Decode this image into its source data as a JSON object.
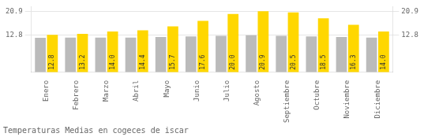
{
  "chart_data": {
    "type": "bar",
    "title": "Temperaturas Medias en cogeces de iscar",
    "categories": [
      "Enero",
      "Febrero",
      "Marzo",
      "Abril",
      "Mayo",
      "Junio",
      "Julio",
      "Agosto",
      "Septiembre",
      "Octubre",
      "Noviembre",
      "Diciembre"
    ],
    "series": [
      {
        "color": "#BBBBBB",
        "values": [
          11.8,
          11.9,
          11.9,
          11.9,
          12.1,
          12.3,
          12.5,
          12.7,
          12.5,
          12.3,
          12.1,
          11.9
        ]
      },
      {
        "color": "#FFD700",
        "values": [
          12.8,
          13.2,
          14.0,
          14.4,
          15.7,
          17.6,
          20.0,
          20.9,
          20.5,
          18.5,
          16.3,
          14.0
        ],
        "data_labels": true,
        "value_labels": [
          "12.8",
          "13.2",
          "14.0",
          "14.4",
          "15.7",
          "17.6",
          "20.0",
          "20.9",
          "20.5",
          "18.5",
          "16.3",
          "14.0"
        ]
      }
    ],
    "ylim": [
      0.0,
      22.5
    ],
    "yticks": [
      12.8,
      20.9
    ],
    "y2lim": [
      0.0,
      22.5
    ],
    "y2ticks": [
      12.8,
      20.9
    ],
    "grid": true
  }
}
